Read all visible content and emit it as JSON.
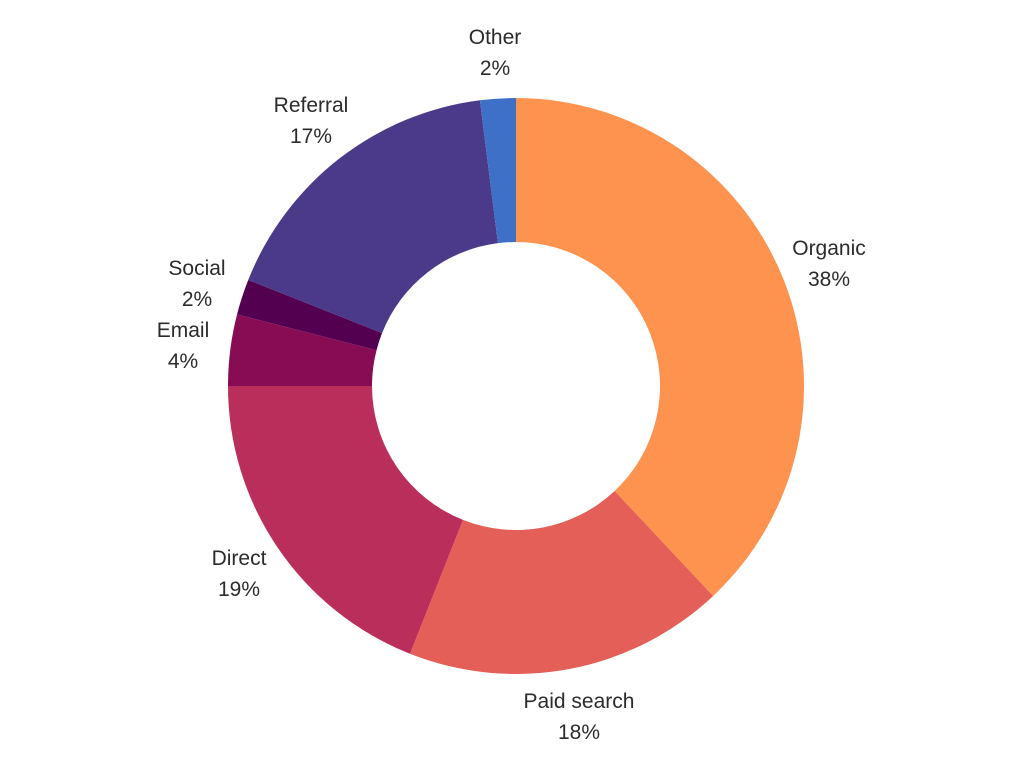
{
  "chart_data": {
    "type": "pie",
    "donut": true,
    "categories": [
      "Organic",
      "Paid search",
      "Direct",
      "Email",
      "Social",
      "Referral",
      "Other"
    ],
    "values": [
      38,
      18,
      19,
      4,
      2,
      17,
      2
    ],
    "value_labels": [
      "38%",
      "18%",
      "19%",
      "4%",
      "2%",
      "17%",
      "2%"
    ],
    "colors": [
      "#FD934E",
      "#E35F58",
      "#B92E5A",
      "#880C54",
      "#540050",
      "#4B3A8A",
      "#3F70C8"
    ],
    "start": "12 o'clock, clockwise",
    "title": "",
    "legend": "none"
  }
}
